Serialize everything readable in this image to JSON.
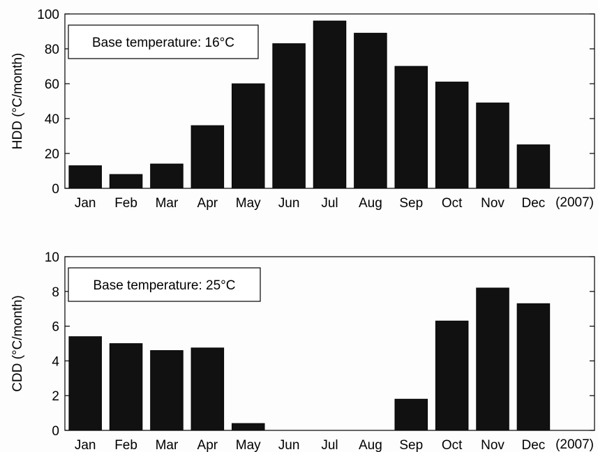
{
  "colors": {
    "bar": "#111111",
    "axis": "#000000",
    "background": "#fdfdfd"
  },
  "chart_data": [
    {
      "type": "bar",
      "title": "",
      "xlabel": "",
      "ylabel": "HDD (°C/month)",
      "x_end_label": "(2007)",
      "annotation": "Base temperature: 16°C",
      "categories": [
        "Jan",
        "Feb",
        "Mar",
        "Apr",
        "May",
        "Jun",
        "Jul",
        "Aug",
        "Sep",
        "Oct",
        "Nov",
        "Dec"
      ],
      "values": [
        13,
        8,
        14,
        36,
        60,
        83,
        96,
        89,
        70,
        61,
        49,
        25
      ],
      "ylim": [
        0,
        100
      ],
      "yticks": [
        0,
        20,
        40,
        60,
        80,
        100
      ],
      "grid": false
    },
    {
      "type": "bar",
      "title": "",
      "xlabel": "",
      "ylabel": "CDD (°C/month)",
      "x_end_label": "(2007)",
      "annotation": "Base temperature: 25°C",
      "categories": [
        "Jan",
        "Feb",
        "Mar",
        "Apr",
        "May",
        "Jun",
        "Jul",
        "Aug",
        "Sep",
        "Oct",
        "Nov",
        "Dec"
      ],
      "values": [
        5.4,
        5.0,
        4.6,
        4.75,
        0.4,
        0,
        0,
        0,
        1.8,
        6.3,
        8.2,
        7.3
      ],
      "ylim": [
        0,
        10
      ],
      "yticks": [
        0,
        2,
        4,
        6,
        8,
        10
      ],
      "grid": false
    }
  ]
}
